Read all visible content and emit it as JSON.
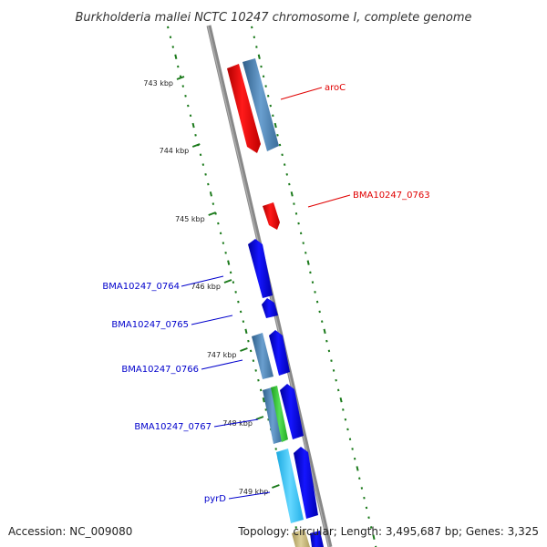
{
  "title": "Burkholderia mallei NCTC 10247 chromosome I, complete genome",
  "footer": {
    "accession": "Accession: NC_009080",
    "summary": "Topology: circular; Length: 3,495,687 bp; Genes: 3,325"
  },
  "ticks": [
    {
      "label": "743 kbp"
    },
    {
      "label": "744 kbp"
    },
    {
      "label": "745 kbp"
    },
    {
      "label": "746 kbp"
    },
    {
      "label": "747 kbp"
    },
    {
      "label": "748 kbp"
    },
    {
      "label": "749 kbp"
    }
  ],
  "gene_labels": [
    {
      "name": "aroC",
      "color": "#e00000"
    },
    {
      "name": "BMA10247_0763",
      "color": "#e00000"
    },
    {
      "name": "BMA10247_0764",
      "color": "#0000cc"
    },
    {
      "name": "BMA10247_0765",
      "color": "#0000cc"
    },
    {
      "name": "BMA10247_0766",
      "color": "#0000cc"
    },
    {
      "name": "BMA10247_0767",
      "color": "#0000cc"
    },
    {
      "name": "pyrD",
      "color": "#0000cc"
    }
  ],
  "colors": {
    "backbone": "#888888",
    "gc_skew_dots": "#1b7a1b",
    "forward_cds": "#0000dd",
    "reverse_cds": "#ee0000",
    "cog_a": "#4682b4",
    "cog_b": "#33cc33",
    "cog_c": "#33ccff",
    "cog_d": "#c8b878"
  }
}
